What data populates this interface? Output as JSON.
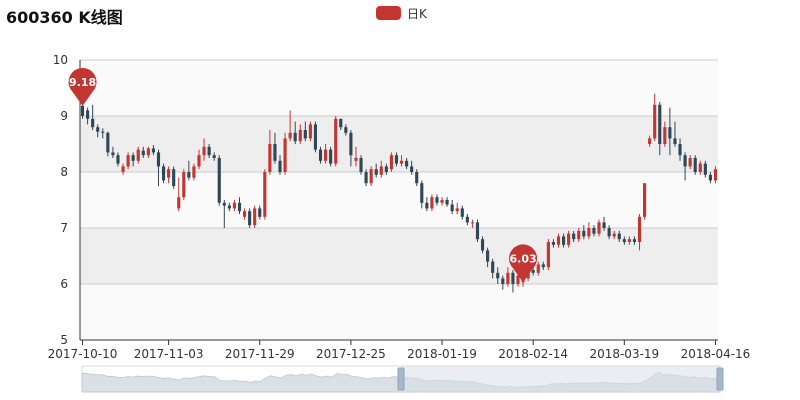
{
  "chart_data": {
    "type": "candlestick",
    "title": "600360 K线图",
    "legend": [
      "日K"
    ],
    "legend_position": "top-center",
    "colors": {
      "up": "#c23531",
      "down": "#314656",
      "legend": "#c23531",
      "marker": "#c23531",
      "band": "#eeeeee",
      "axis": "#333333",
      "dataZoomFill": "#d8dfe8"
    },
    "y_axis": {
      "min": 5,
      "max": 10,
      "ticks": [
        5,
        6,
        7,
        8,
        9,
        10
      ],
      "split_area": true
    },
    "x_labels": [
      "2017-10-10",
      "2017-11-03",
      "2017-11-29",
      "2017-12-25",
      "2018-01-19",
      "2018-02-14",
      "2018-03-19",
      "2018-04-16"
    ],
    "x_label_index": [
      0,
      17,
      35,
      53,
      71,
      89,
      107,
      125
    ],
    "markers": [
      {
        "label": "9.18",
        "index": 0,
        "value": 9.18
      },
      {
        "label": "6.03",
        "index": 87,
        "value": 6.03
      }
    ],
    "data_zoom": {
      "start_percent": 50,
      "end_percent": 100
    },
    "candles": [
      [
        9.18,
        9.0,
        8.95,
        9.3
      ],
      [
        9.1,
        8.95,
        8.85,
        9.15
      ],
      [
        8.95,
        8.8,
        8.75,
        9.2
      ],
      [
        8.8,
        8.72,
        8.62,
        8.85
      ],
      [
        8.72,
        8.7,
        8.6,
        8.78
      ],
      [
        8.7,
        8.35,
        8.28,
        8.72
      ],
      [
        8.35,
        8.3,
        8.25,
        8.45
      ],
      [
        8.3,
        8.15,
        8.1,
        8.35
      ],
      [
        8.0,
        8.1,
        7.95,
        8.15
      ],
      [
        8.1,
        8.3,
        8.05,
        8.35
      ],
      [
        8.3,
        8.2,
        8.1,
        8.35
      ],
      [
        8.2,
        8.4,
        8.15,
        8.45
      ],
      [
        8.38,
        8.3,
        8.25,
        8.45
      ],
      [
        8.3,
        8.42,
        8.25,
        8.45
      ],
      [
        8.42,
        8.35,
        8.3,
        8.48
      ],
      [
        8.35,
        8.1,
        7.75,
        8.4
      ],
      [
        8.1,
        7.85,
        7.8,
        8.15
      ],
      [
        7.9,
        8.05,
        7.8,
        8.1
      ],
      [
        8.05,
        7.75,
        7.7,
        8.1
      ],
      [
        7.35,
        7.55,
        7.3,
        7.9
      ],
      [
        7.55,
        8.0,
        7.5,
        8.05
      ],
      [
        8.0,
        7.9,
        7.85,
        8.2
      ],
      [
        7.9,
        8.1,
        7.85,
        8.15
      ],
      [
        8.1,
        8.3,
        8.05,
        8.4
      ],
      [
        8.3,
        8.45,
        8.2,
        8.6
      ],
      [
        8.45,
        8.3,
        8.25,
        8.5
      ],
      [
        8.3,
        8.25,
        8.2,
        8.35
      ],
      [
        8.25,
        7.45,
        7.4,
        8.3
      ],
      [
        7.45,
        7.4,
        7.0,
        7.5
      ],
      [
        7.4,
        7.35,
        7.3,
        7.45
      ],
      [
        7.35,
        7.45,
        7.3,
        7.5
      ],
      [
        7.45,
        7.3,
        7.25,
        7.55
      ],
      [
        7.2,
        7.3,
        7.15,
        7.35
      ],
      [
        7.3,
        7.05,
        7.0,
        7.35
      ],
      [
        7.05,
        7.35,
        7.0,
        7.4
      ],
      [
        7.35,
        7.2,
        7.15,
        7.4
      ],
      [
        7.2,
        8.0,
        7.15,
        8.05
      ],
      [
        8.0,
        8.5,
        7.95,
        8.75
      ],
      [
        8.5,
        8.2,
        8.15,
        8.7
      ],
      [
        8.2,
        8.0,
        7.95,
        8.3
      ],
      [
        8.0,
        8.6,
        7.95,
        8.7
      ],
      [
        8.6,
        8.7,
        8.55,
        9.1
      ],
      [
        8.7,
        8.55,
        8.5,
        8.9
      ],
      [
        8.55,
        8.75,
        8.5,
        8.85
      ],
      [
        8.75,
        8.6,
        8.55,
        8.9
      ],
      [
        8.6,
        8.85,
        8.55,
        8.9
      ],
      [
        8.85,
        8.4,
        8.35,
        8.9
      ],
      [
        8.4,
        8.2,
        8.15,
        8.45
      ],
      [
        8.2,
        8.4,
        8.15,
        8.5
      ],
      [
        8.4,
        8.15,
        8.1,
        8.45
      ],
      [
        8.15,
        8.95,
        8.1,
        9.0
      ],
      [
        8.95,
        8.8,
        8.75,
        8.95
      ],
      [
        8.8,
        8.7,
        8.65,
        8.85
      ],
      [
        8.7,
        8.3,
        8.1,
        8.75
      ],
      [
        8.2,
        8.25,
        8.1,
        8.45
      ],
      [
        8.25,
        8.0,
        7.95,
        8.3
      ],
      [
        8.0,
        7.8,
        7.75,
        8.05
      ],
      [
        7.8,
        8.05,
        7.75,
        8.1
      ],
      [
        8.05,
        7.95,
        7.9,
        8.15
      ],
      [
        7.95,
        8.1,
        7.9,
        8.2
      ],
      [
        8.1,
        8.0,
        7.95,
        8.15
      ],
      [
        8.05,
        8.3,
        8.0,
        8.35
      ],
      [
        8.3,
        8.15,
        8.1,
        8.35
      ],
      [
        8.15,
        8.2,
        8.1,
        8.3
      ],
      [
        8.2,
        8.1,
        8.05,
        8.25
      ],
      [
        8.1,
        8.0,
        7.95,
        8.2
      ],
      [
        8.0,
        7.8,
        7.75,
        8.05
      ],
      [
        7.8,
        7.45,
        7.35,
        7.85
      ],
      [
        7.45,
        7.35,
        7.3,
        7.55
      ],
      [
        7.35,
        7.55,
        7.3,
        7.6
      ],
      [
        7.55,
        7.45,
        7.4,
        7.6
      ],
      [
        7.45,
        7.5,
        7.4,
        7.55
      ],
      [
        7.5,
        7.42,
        7.38,
        7.55
      ],
      [
        7.42,
        7.3,
        7.25,
        7.5
      ],
      [
        7.3,
        7.35,
        7.25,
        7.45
      ],
      [
        7.35,
        7.2,
        7.15,
        7.4
      ],
      [
        7.2,
        7.1,
        7.05,
        7.25
      ],
      [
        7.1,
        7.1,
        7.0,
        7.15
      ],
      [
        7.1,
        6.8,
        6.75,
        7.15
      ],
      [
        6.8,
        6.6,
        6.55,
        6.85
      ],
      [
        6.6,
        6.4,
        6.3,
        6.65
      ],
      [
        6.4,
        6.2,
        6.1,
        6.45
      ],
      [
        6.2,
        6.1,
        6.0,
        6.3
      ],
      [
        6.1,
        6.0,
        5.9,
        6.15
      ],
      [
        6.0,
        6.2,
        5.95,
        6.3
      ],
      [
        6.2,
        6.0,
        5.85,
        6.25
      ],
      [
        6.0,
        6.15,
        5.95,
        6.2
      ],
      [
        6.03,
        6.1,
        5.95,
        6.2
      ],
      [
        6.1,
        6.25,
        6.05,
        6.3
      ],
      [
        6.25,
        6.2,
        6.15,
        6.35
      ],
      [
        6.2,
        6.35,
        6.15,
        6.4
      ],
      [
        6.35,
        6.3,
        6.25,
        6.4
      ],
      [
        6.3,
        6.75,
        6.25,
        6.8
      ],
      [
        6.75,
        6.7,
        6.65,
        6.8
      ],
      [
        6.7,
        6.85,
        6.65,
        6.9
      ],
      [
        6.85,
        6.7,
        6.65,
        6.9
      ],
      [
        6.7,
        6.9,
        6.65,
        6.95
      ],
      [
        6.9,
        6.8,
        6.75,
        6.95
      ],
      [
        6.8,
        6.95,
        6.75,
        7.0
      ],
      [
        6.95,
        6.85,
        6.8,
        7.05
      ],
      [
        6.85,
        7.0,
        6.8,
        7.1
      ],
      [
        7.0,
        6.9,
        6.85,
        7.05
      ],
      [
        6.9,
        7.1,
        6.85,
        7.15
      ],
      [
        7.1,
        7.0,
        6.95,
        7.2
      ],
      [
        7.0,
        6.85,
        6.8,
        7.05
      ],
      [
        6.85,
        6.9,
        6.8,
        6.95
      ],
      [
        6.9,
        6.8,
        6.75,
        6.95
      ],
      [
        6.8,
        6.75,
        6.7,
        6.85
      ],
      [
        6.75,
        6.8,
        6.7,
        6.85
      ],
      [
        6.8,
        6.75,
        6.7,
        6.85
      ],
      [
        6.75,
        7.2,
        6.6,
        7.25
      ],
      [
        7.2,
        7.8,
        7.15,
        7.8
      ],
      [
        8.5,
        8.6,
        8.45,
        8.65
      ],
      [
        8.6,
        9.2,
        8.55,
        9.4
      ],
      [
        9.2,
        8.5,
        8.3,
        9.25
      ],
      [
        8.5,
        8.8,
        8.45,
        8.9
      ],
      [
        8.8,
        8.6,
        8.3,
        9.15
      ],
      [
        8.6,
        8.5,
        8.45,
        8.9
      ],
      [
        8.5,
        8.3,
        8.2,
        8.6
      ],
      [
        8.3,
        8.1,
        7.85,
        8.35
      ],
      [
        8.1,
        8.25,
        8.05,
        8.3
      ],
      [
        8.25,
        8.0,
        7.95,
        8.3
      ],
      [
        8.0,
        8.15,
        7.95,
        8.2
      ],
      [
        8.15,
        7.95,
        7.9,
        8.2
      ],
      [
        7.95,
        7.85,
        7.8,
        8.0
      ],
      [
        7.85,
        8.05,
        7.8,
        8.1
      ]
    ]
  }
}
